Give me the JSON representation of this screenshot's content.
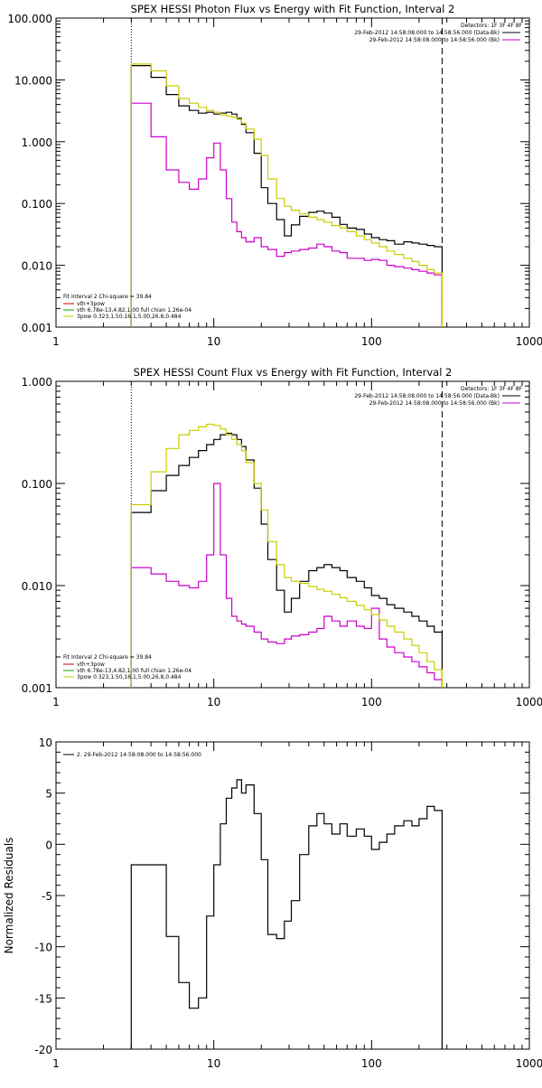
{
  "chart_data": [
    {
      "type": "line",
      "title": "SPEX HESSI Photon Flux vs Energy with Fit Function, Interval 2",
      "xlabel": "",
      "ylabel": "",
      "xscale": "log",
      "yscale": "log",
      "xlim": [
        1,
        1000
      ],
      "ylim": [
        0.001,
        100
      ],
      "x_ticks": [
        "1",
        "10",
        "100",
        "1000"
      ],
      "y_ticks": [
        "0.001",
        "0.010",
        "0.100",
        "1.000",
        "10.000",
        "100.000"
      ],
      "legend_topright": {
        "header": "Detectors: 1F 3F 4F 8F",
        "entries": [
          {
            "text": "29-Feb-2012 14:58:08.000 to 14:58:56.000 (Data-Bk)",
            "color": "#000000"
          },
          {
            "text": "29-Feb-2012 14:58:08.000 to 14:58:56.000 (Bk)",
            "color": "#cc00cc"
          }
        ]
      },
      "legend_bottomleft": {
        "header": "Fit Interval  2   Chi-square = 39.84",
        "entries": [
          {
            "text": "vth+3pow",
            "color": "#cc0000"
          },
          {
            "text": "vth 6.78e-13,4.82,1.00  full chian 1.26e-04",
            "color": "#00aa00"
          },
          {
            "text": "3pow 0.323,1.50,16.1,5.00,26.8,0.484",
            "color": "#cccc00"
          }
        ]
      },
      "vlines": [
        {
          "x": 3.0,
          "style": "dotted"
        },
        {
          "x": 280,
          "style": "dashed"
        }
      ],
      "series": [
        {
          "color": "#000000",
          "edges": [
            3,
            4,
            5,
            6,
            7,
            8,
            9,
            10,
            11,
            12,
            13,
            14,
            15,
            16,
            18,
            20,
            22,
            25,
            28,
            31,
            35,
            40,
            45,
            50,
            56,
            63,
            70,
            80,
            90,
            100,
            112,
            125,
            140,
            160,
            180,
            200,
            225,
            250,
            280
          ],
          "values": [
            17,
            11,
            5.8,
            3.8,
            3.2,
            2.9,
            3.0,
            2.8,
            2.9,
            3.0,
            2.8,
            2.4,
            1.9,
            1.4,
            0.65,
            0.18,
            0.1,
            0.055,
            0.03,
            0.045,
            0.062,
            0.072,
            0.075,
            0.07,
            0.06,
            0.046,
            0.04,
            0.038,
            0.032,
            0.028,
            0.026,
            0.025,
            0.022,
            0.024,
            0.023,
            0.022,
            0.021,
            0.02
          ]
        },
        {
          "color": "#cc00cc",
          "edges": [
            3,
            4,
            5,
            6,
            7,
            8,
            9,
            10,
            11,
            12,
            13,
            14,
            15,
            16,
            18,
            20,
            22,
            25,
            28,
            31,
            35,
            40,
            45,
            50,
            56,
            63,
            70,
            80,
            90,
            100,
            112,
            125,
            140,
            160,
            180,
            200,
            225,
            250,
            280
          ],
          "values": [
            4.2,
            1.2,
            0.35,
            0.22,
            0.17,
            0.25,
            0.55,
            0.95,
            0.35,
            0.12,
            0.05,
            0.035,
            0.028,
            0.024,
            0.028,
            0.02,
            0.018,
            0.014,
            0.016,
            0.017,
            0.018,
            0.019,
            0.022,
            0.02,
            0.017,
            0.016,
            0.013,
            0.013,
            0.012,
            0.0125,
            0.012,
            0.01,
            0.0095,
            0.009,
            0.0085,
            0.008,
            0.0075,
            0.007
          ]
        },
        {
          "color": "#cccc00",
          "edges": [
            3,
            4,
            5,
            6,
            7,
            8,
            9,
            10,
            11,
            12,
            13,
            14,
            15,
            16,
            18,
            20,
            22,
            25,
            28,
            31,
            35,
            40,
            45,
            50,
            56,
            63,
            70,
            80,
            90,
            100,
            112,
            125,
            140,
            160,
            180,
            200,
            225,
            250,
            280
          ],
          "values": [
            18,
            14,
            8,
            5,
            4.2,
            3.6,
            3.2,
            3.0,
            2.7,
            2.6,
            2.5,
            2.3,
            2.0,
            1.6,
            1.1,
            0.6,
            0.25,
            0.12,
            0.09,
            0.078,
            0.068,
            0.06,
            0.055,
            0.05,
            0.044,
            0.04,
            0.035,
            0.03,
            0.026,
            0.023,
            0.02,
            0.017,
            0.015,
            0.013,
            0.0115,
            0.01,
            0.0085,
            0.0075
          ]
        }
      ]
    },
    {
      "type": "line",
      "title": "SPEX HESSI Count Flux vs Energy with Fit Function, Interval 2",
      "xlabel": "",
      "ylabel": "",
      "xscale": "log",
      "yscale": "log",
      "xlim": [
        1,
        1000
      ],
      "ylim": [
        0.001,
        1
      ],
      "x_ticks": [
        "1",
        "10",
        "100",
        "1000"
      ],
      "y_ticks": [
        "0.001",
        "0.010",
        "0.100",
        "1.000"
      ],
      "legend_topright": {
        "header": "Detectors: 1F 3F 4F 8F",
        "entries": [
          {
            "text": "29-Feb-2012 14:58:08.000 to 14:58:56.000 (Data-Bk)",
            "color": "#000000"
          },
          {
            "text": "29-Feb-2012 14:58:08.000 to 14:58:56.000 (Bk)",
            "color": "#cc00cc"
          }
        ]
      },
      "legend_bottomleft": {
        "header": "Fit Interval  2   Chi-square = 39.84",
        "entries": [
          {
            "text": "vth+3pow",
            "color": "#cc0000"
          },
          {
            "text": "vth 6.78e-13,4.82,1.00  full chian 1.26e-04",
            "color": "#00aa00"
          },
          {
            "text": "3pow 0.323,1.50,16.1,5.00,26.8,0.484",
            "color": "#cccc00"
          }
        ]
      },
      "vlines": [
        {
          "x": 3.0,
          "style": "dotted"
        },
        {
          "x": 280,
          "style": "dashed"
        }
      ],
      "series": [
        {
          "color": "#000000",
          "edges": [
            3,
            4,
            5,
            6,
            7,
            8,
            9,
            10,
            11,
            12,
            13,
            14,
            15,
            16,
            18,
            20,
            22,
            25,
            28,
            31,
            35,
            40,
            45,
            50,
            56,
            63,
            70,
            80,
            90,
            100,
            112,
            125,
            140,
            160,
            180,
            200,
            225,
            250,
            280
          ],
          "values": [
            0.052,
            0.085,
            0.12,
            0.15,
            0.18,
            0.21,
            0.24,
            0.27,
            0.3,
            0.31,
            0.3,
            0.27,
            0.23,
            0.17,
            0.09,
            0.04,
            0.018,
            0.009,
            0.0055,
            0.0075,
            0.011,
            0.014,
            0.015,
            0.016,
            0.015,
            0.014,
            0.012,
            0.011,
            0.0095,
            0.008,
            0.0075,
            0.0065,
            0.006,
            0.0055,
            0.005,
            0.0045,
            0.004,
            0.0035
          ]
        },
        {
          "color": "#cc00cc",
          "edges": [
            3,
            4,
            5,
            6,
            7,
            8,
            9,
            10,
            11,
            12,
            13,
            14,
            15,
            16,
            18,
            20,
            22,
            25,
            28,
            31,
            35,
            40,
            45,
            50,
            56,
            63,
            70,
            80,
            90,
            100,
            112,
            125,
            140,
            160,
            180,
            200,
            225,
            250,
            280
          ],
          "values": [
            0.015,
            0.013,
            0.011,
            0.01,
            0.0095,
            0.011,
            0.02,
            0.1,
            0.02,
            0.0075,
            0.005,
            0.0045,
            0.0042,
            0.004,
            0.0035,
            0.003,
            0.0028,
            0.0027,
            0.003,
            0.0032,
            0.0033,
            0.0035,
            0.0038,
            0.005,
            0.0045,
            0.004,
            0.0045,
            0.004,
            0.0038,
            0.006,
            0.003,
            0.0025,
            0.0022,
            0.002,
            0.0018,
            0.0016,
            0.0014,
            0.0012
          ]
        },
        {
          "color": "#cccc00",
          "edges": [
            3,
            4,
            5,
            6,
            7,
            8,
            9,
            10,
            11,
            12,
            13,
            14,
            15,
            16,
            18,
            20,
            22,
            25,
            28,
            31,
            35,
            40,
            45,
            50,
            56,
            63,
            70,
            80,
            90,
            100,
            112,
            125,
            140,
            160,
            180,
            200,
            225,
            250,
            280
          ],
          "values": [
            0.062,
            0.13,
            0.22,
            0.3,
            0.33,
            0.36,
            0.38,
            0.37,
            0.34,
            0.3,
            0.27,
            0.24,
            0.21,
            0.16,
            0.1,
            0.055,
            0.027,
            0.016,
            0.012,
            0.011,
            0.0105,
            0.0098,
            0.0092,
            0.0088,
            0.0082,
            0.0076,
            0.007,
            0.0064,
            0.0058,
            0.0052,
            0.0046,
            0.004,
            0.0035,
            0.003,
            0.0026,
            0.0022,
            0.0018,
            0.0015
          ]
        }
      ]
    },
    {
      "type": "line",
      "title": "",
      "xlabel": "",
      "ylabel": "Normalized Residuals",
      "xscale": "log",
      "yscale": "linear",
      "xlim": [
        1,
        1000
      ],
      "ylim": [
        -20,
        10
      ],
      "x_ticks": [
        "1",
        "10",
        "100",
        "1000"
      ],
      "y_ticks": [
        "-20",
        "-15",
        "-10",
        "-5",
        "0",
        "5",
        "10"
      ],
      "legend_topleft": {
        "entries": [
          {
            "text": "2. 29-Feb-2012 14:58:08.000 to 14:58:56.000",
            "color": "#000000"
          }
        ]
      },
      "series": [
        {
          "color": "#000000",
          "edges": [
            3,
            4,
            5,
            6,
            7,
            8,
            9,
            10,
            11,
            12,
            13,
            14,
            15,
            16,
            18,
            20,
            22,
            25,
            28,
            31,
            35,
            40,
            45,
            50,
            56,
            63,
            70,
            80,
            90,
            100,
            112,
            125,
            140,
            160,
            180,
            200,
            225,
            250,
            280
          ],
          "values": [
            -2,
            -2,
            -9,
            -13.5,
            -16,
            -15,
            -7,
            -2,
            2,
            4.5,
            5.5,
            6.3,
            5,
            5.8,
            3,
            -1.5,
            -8.8,
            -9.2,
            -7.5,
            -5.5,
            -1,
            1.8,
            3,
            2,
            1,
            2,
            0.8,
            1.5,
            0.8,
            -0.5,
            0.2,
            1,
            1.8,
            2.3,
            1.8,
            2.5,
            3.7,
            3.3
          ]
        }
      ]
    }
  ]
}
